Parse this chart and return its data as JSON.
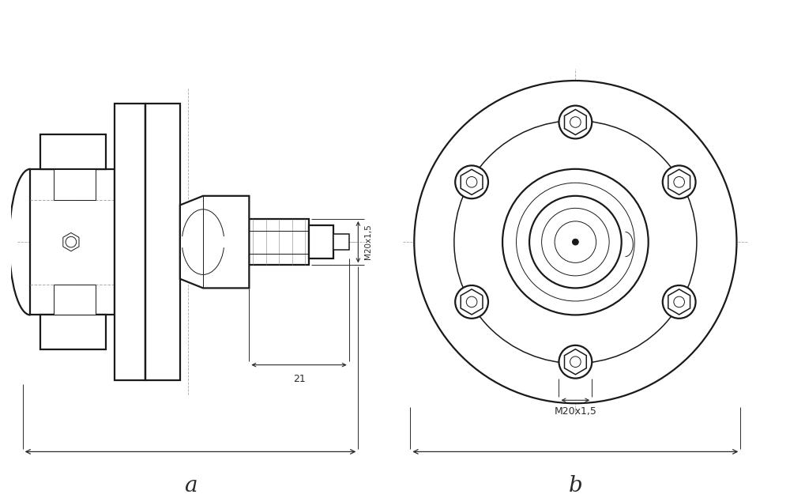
{
  "bg_color": "#ffffff",
  "line_color": "#1a1a1a",
  "dim_line_color": "#2a2a2a",
  "center_line_color": "#aaaaaa",
  "fig_width": 10.0,
  "fig_height": 6.3,
  "label_a": "a",
  "label_b": "b",
  "dim_21": "21",
  "dim_m20x15_side": "M20x1,5",
  "dim_m20x15_front": "M20x1,5"
}
